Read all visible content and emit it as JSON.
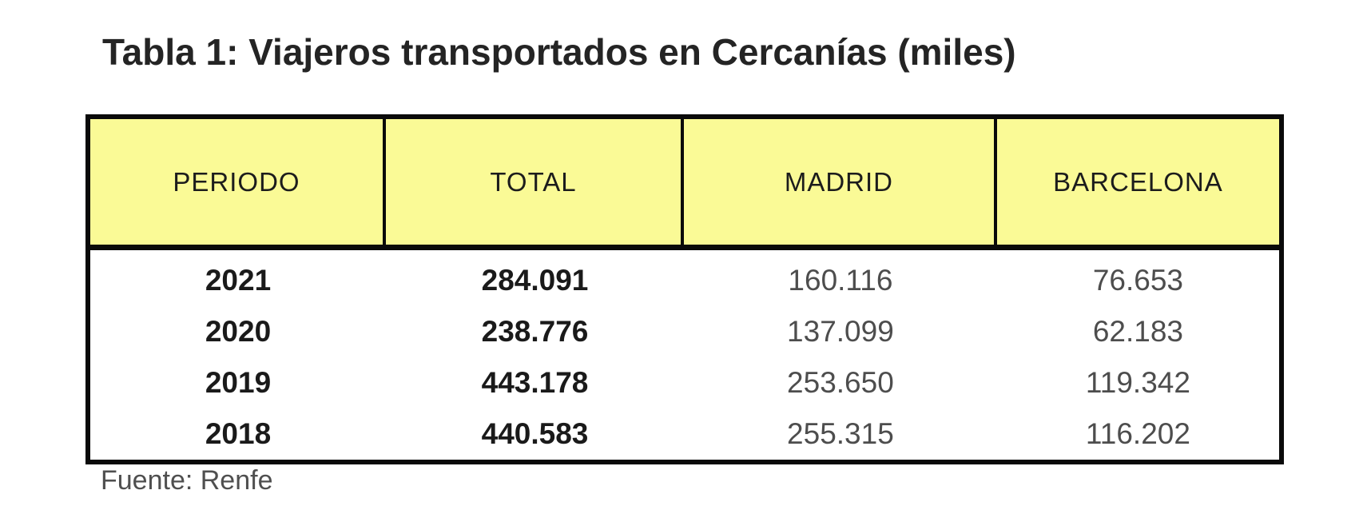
{
  "title": "Tabla 1: Viajeros transportados en Cercanías (miles)",
  "source_note": "Fuente: Renfe",
  "table": {
    "columns": [
      "PERIODO",
      "TOTAL",
      "MADRID",
      "BARCELONA"
    ],
    "rows": [
      [
        "2021",
        "284.091",
        "160.116",
        "76.653"
      ],
      [
        "2020",
        "238.776",
        "137.099",
        "62.183"
      ],
      [
        "2019",
        "443.178",
        "253.650",
        "119.342"
      ],
      [
        "2018",
        "440.583",
        "255.315",
        "116.202"
      ]
    ]
  },
  "chart_data": {
    "type": "table",
    "title": "Tabla 1: Viajeros transportados en Cercanías (miles)",
    "categories": [
      "2021",
      "2020",
      "2019",
      "2018"
    ],
    "series": [
      {
        "name": "TOTAL",
        "values": [
          284091,
          238776,
          443178,
          440583
        ]
      },
      {
        "name": "MADRID",
        "values": [
          160116,
          137099,
          253650,
          255315
        ]
      },
      {
        "name": "BARCELONA",
        "values": [
          76653,
          62183,
          119342,
          116202
        ]
      }
    ],
    "source": "Fuente: Renfe"
  },
  "colors": {
    "header_bg": "#FAFA96",
    "border_color": "#0a0a0a",
    "title_color": "#242424",
    "source_color": "#4f4f4f",
    "page_bg": "#ffffff"
  }
}
